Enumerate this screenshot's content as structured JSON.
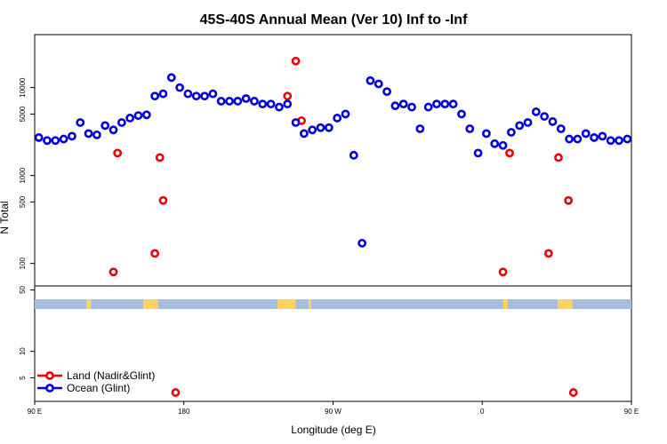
{
  "chart_data": {
    "type": "scatter",
    "title": "45S-40S Annual Mean (Ver 10)   Inf to -Inf",
    "xlabel": "Longitude (deg E)",
    "ylabel": "N Total",
    "yscale": "log",
    "xlim": [
      90,
      450
    ],
    "ylim": [
      2.7,
      40000
    ],
    "x_ticks": [
      {
        "value": 90,
        "label": "90 E"
      },
      {
        "value": 180,
        "label": "180"
      },
      {
        "value": 270,
        "label": "90 W"
      },
      {
        "value": 360,
        "label": "0"
      },
      {
        "value": 450,
        "label": "90 E"
      },
      {
        "value": 540,
        "label": "180"
      }
    ],
    "y_ticks": [
      {
        "value": 5,
        "label": "5"
      },
      {
        "value": 10,
        "label": "10"
      },
      {
        "value": 50,
        "label": "50"
      },
      {
        "value": 100,
        "label": "100"
      },
      {
        "value": 500,
        "label": "500"
      },
      {
        "value": 1000,
        "label": "1000"
      },
      {
        "value": 5000,
        "label": "5000"
      },
      {
        "value": 10000,
        "label": "10000"
      }
    ],
    "x_axis_labels_display": [
      "90 E",
      "180",
      "90 W",
      "0",
      "90 E",
      "180"
    ],
    "legend_position": "bottom-left",
    "series": [
      {
        "name": "Land (Nadir&Glint)",
        "color": "#ee0000",
        "x": [
          137.5,
          140,
          162.5,
          165.5,
          167.5,
          175,
          242.5,
          247.5,
          251,
          372.5,
          376.5,
          400,
          406,
          412,
          415
        ],
        "y": [
          80,
          1800,
          130,
          1600,
          520,
          3.4,
          8000,
          20000,
          4200,
          80,
          1800,
          130,
          1600,
          520,
          3.4
        ]
      },
      {
        "name": "Ocean (Glint)",
        "color": "#0000dd",
        "x": [
          92.5,
          97.5,
          102.5,
          107.5,
          112.5,
          117.5,
          122.5,
          127.5,
          132.5,
          137.5,
          142.5,
          147.5,
          152.5,
          157.5,
          162.5,
          167.5,
          172.5,
          177.5,
          182.5,
          187.5,
          192.5,
          197.5,
          202.5,
          207.5,
          212.5,
          217.5,
          222.5,
          227.5,
          232.5,
          237.5,
          242.5,
          247.5,
          252.5,
          257.5,
          262.5,
          267.5,
          272.5,
          277.5,
          282.5,
          287.5,
          292.5,
          297.5,
          302.5,
          307.5,
          312.5,
          317.5,
          322.5,
          327.5,
          332.5,
          337.5,
          342.5,
          347.5,
          352.5,
          357.5,
          362.5,
          367.5,
          372.5,
          377.5,
          382.5,
          387.5,
          392.5,
          397.5,
          402.5,
          407.5,
          412.5,
          417.5,
          422.5,
          427.5,
          432.5,
          437.5,
          442.5,
          447.5
        ],
        "y": [
          2700,
          2500,
          2500,
          2600,
          2800,
          4000,
          3000,
          2900,
          3700,
          3300,
          4000,
          4500,
          4800,
          4900,
          8000,
          8500,
          13000,
          10000,
          8500,
          8000,
          8000,
          8500,
          7000,
          7000,
          7000,
          7500,
          7000,
          6500,
          6500,
          6000,
          6500,
          4000,
          3000,
          3300,
          3500,
          3500,
          4500,
          5000,
          1700,
          170,
          12000,
          11000,
          9000,
          6200,
          6500,
          6000,
          3400,
          6000,
          6500,
          6500,
          6500,
          5000,
          3400,
          1800,
          3000,
          2300,
          2200,
          3100,
          3700,
          4000,
          5300,
          4700,
          4100,
          3400,
          2600,
          2600,
          3000,
          2700,
          2800,
          2500,
          2500,
          2600
        ]
      }
    ]
  },
  "map_strip": {
    "ocean_color": "#a6bde0",
    "land_color": "#ffd35c"
  }
}
